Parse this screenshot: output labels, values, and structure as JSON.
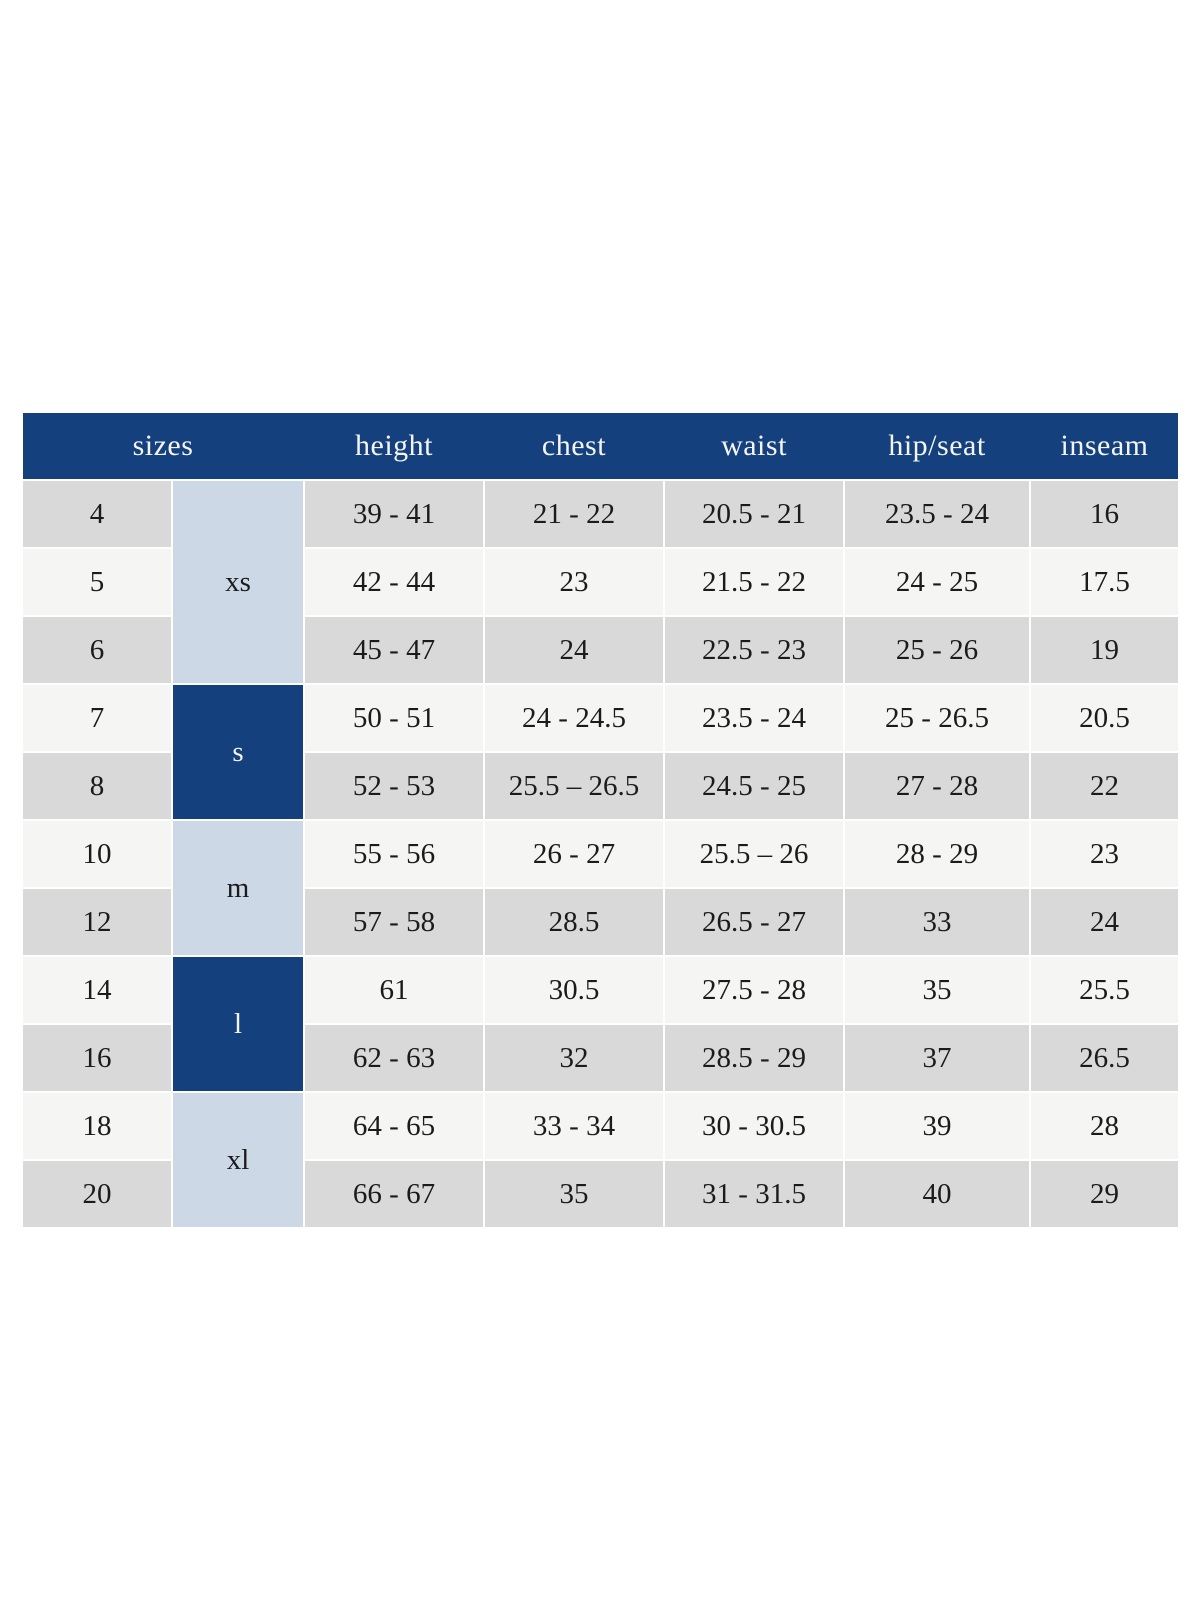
{
  "chart_data": {
    "type": "table",
    "headers": [
      "sizes",
      "height",
      "chest",
      "waist",
      "hip/seat",
      "inseam"
    ],
    "size_groups": [
      {
        "label": "xs",
        "span": 3,
        "tone": "light"
      },
      {
        "label": "s",
        "span": 2,
        "tone": "dark"
      },
      {
        "label": "m",
        "span": 2,
        "tone": "light"
      },
      {
        "label": "l",
        "span": 2,
        "tone": "dark"
      },
      {
        "label": "xl",
        "span": 2,
        "tone": "light"
      }
    ],
    "rows": [
      [
        "4",
        "39 - 41",
        "21 - 22",
        "20.5 - 21",
        "23.5 - 24",
        "16"
      ],
      [
        "5",
        "42 - 44",
        "23",
        "21.5 - 22",
        "24 - 25",
        "17.5"
      ],
      [
        "6",
        "45 - 47",
        "24",
        "22.5 - 23",
        "25 - 26",
        "19"
      ],
      [
        "7",
        "50 - 51",
        "24 - 24.5",
        "23.5 - 24",
        "25 - 26.5",
        "20.5"
      ],
      [
        "8",
        "52 - 53",
        "25.5 – 26.5",
        "24.5 - 25",
        "27 - 28",
        "22"
      ],
      [
        "10",
        "55 - 56",
        "26 - 27",
        "25.5 – 26",
        "28 - 29",
        "23"
      ],
      [
        "12",
        "57 - 58",
        "28.5",
        "26.5 - 27",
        "33",
        "24"
      ],
      [
        "14",
        "61",
        "30.5",
        "27.5 - 28",
        "35",
        "25.5"
      ],
      [
        "16",
        "62 - 63",
        "32",
        "28.5 - 29",
        "37",
        "26.5"
      ],
      [
        "18",
        "64 - 65",
        "33 - 34",
        "30 - 30.5",
        "39",
        "28"
      ],
      [
        "20",
        "66 - 67",
        "35",
        "31 - 31.5",
        "40",
        "29"
      ]
    ],
    "colors": {
      "header_bg": "#14407e",
      "header_text": "#f5f4f0",
      "group_light_bg": "#ccd8e6",
      "group_dark_bg": "#14407e",
      "row_odd_bg": "#d9d9d9",
      "row_even_bg": "#f5f5f4",
      "body_text": "#1b1b1b"
    }
  }
}
